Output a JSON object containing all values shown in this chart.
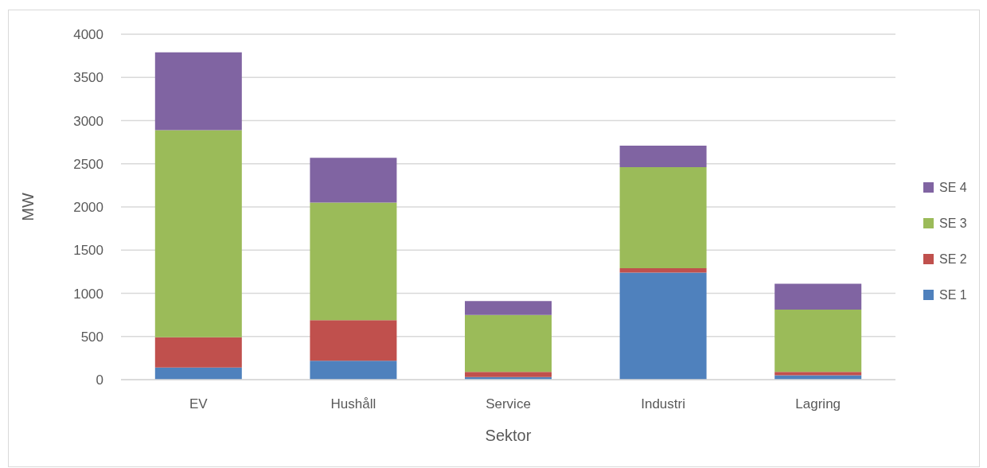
{
  "chart_data": {
    "type": "bar",
    "stacked": true,
    "xlabel": "Sektor",
    "ylabel": "MW",
    "categories": [
      "EV",
      "Hushåll",
      "Service",
      "Industri",
      "Lagring"
    ],
    "series": [
      {
        "name": "SE 1",
        "color": "#4f81bd",
        "values": [
          140,
          220,
          30,
          1240,
          50
        ]
      },
      {
        "name": "SE 2",
        "color": "#c0504d",
        "values": [
          350,
          470,
          60,
          50,
          40
        ]
      },
      {
        "name": "SE 3",
        "color": "#9bbb59",
        "values": [
          2400,
          1360,
          660,
          1170,
          720
        ]
      },
      {
        "name": "SE 4",
        "color": "#8064a2",
        "values": [
          900,
          520,
          160,
          250,
          300
        ]
      }
    ],
    "ylim": [
      0,
      4000
    ],
    "yticks": [
      0,
      500,
      1000,
      1500,
      2000,
      2500,
      3000,
      3500,
      4000
    ],
    "grid": "y",
    "legend": "right"
  }
}
